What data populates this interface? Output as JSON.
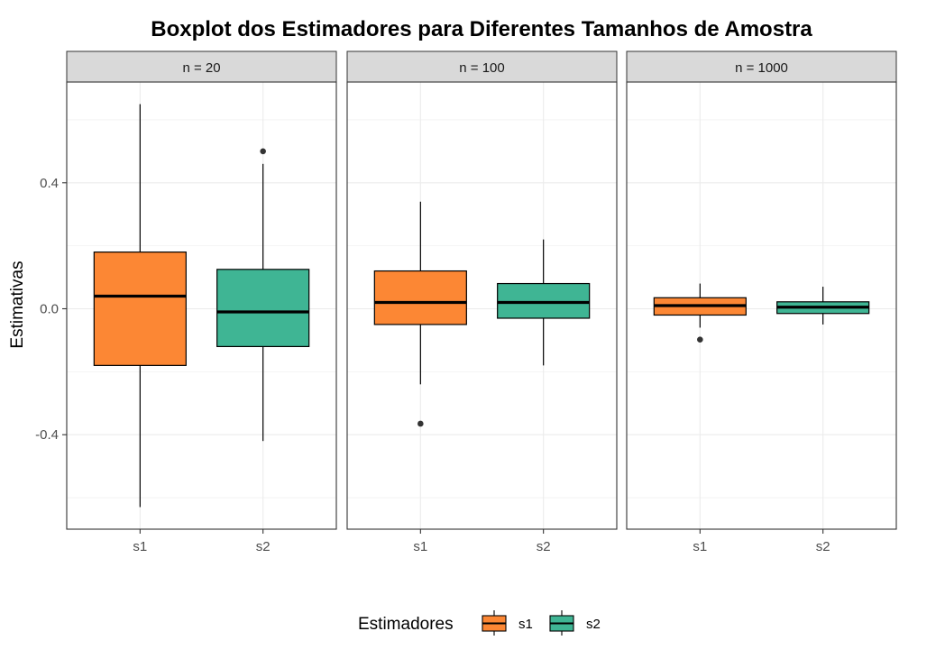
{
  "chart_data": {
    "type": "boxplot",
    "title": "Boxplot dos Estimadores para Diferentes Tamanhos de Amostra",
    "ylabel": "Estimativas",
    "xlabel": "",
    "ylim": [
      -0.7,
      0.72
    ],
    "yticks": [
      -0.4,
      0.0,
      0.4
    ],
    "ytick_labels": [
      "-0.4",
      "0.0",
      "0.4"
    ],
    "grid": true,
    "categories": [
      "s1",
      "s2"
    ],
    "colors": {
      "s1": "#FC8734",
      "s2": "#3FB594"
    },
    "panels": [
      {
        "label": "n = 20",
        "boxes": [
          {
            "category": "s1",
            "whisker_low": -0.63,
            "q1": -0.18,
            "median": 0.04,
            "q3": 0.18,
            "whisker_high": 0.65,
            "outliers": []
          },
          {
            "category": "s2",
            "whisker_low": -0.42,
            "q1": -0.12,
            "median": -0.01,
            "q3": 0.125,
            "whisker_high": 0.46,
            "outliers": [
              0.5
            ]
          }
        ]
      },
      {
        "label": "n = 100",
        "boxes": [
          {
            "category": "s1",
            "whisker_low": -0.24,
            "q1": -0.05,
            "median": 0.02,
            "q3": 0.12,
            "whisker_high": 0.34,
            "outliers": [
              -0.365
            ]
          },
          {
            "category": "s2",
            "whisker_low": -0.18,
            "q1": -0.03,
            "median": 0.02,
            "q3": 0.08,
            "whisker_high": 0.22,
            "outliers": []
          }
        ]
      },
      {
        "label": "n = 1000",
        "boxes": [
          {
            "category": "s1",
            "whisker_low": -0.06,
            "q1": -0.02,
            "median": 0.01,
            "q3": 0.035,
            "whisker_high": 0.08,
            "outliers": [
              -0.098
            ]
          },
          {
            "category": "s2",
            "whisker_low": -0.05,
            "q1": -0.015,
            "median": 0.005,
            "q3": 0.022,
            "whisker_high": 0.07,
            "outliers": []
          }
        ]
      }
    ],
    "legend": {
      "title": "Estimadores",
      "position": "bottom",
      "entries": [
        "s1",
        "s2"
      ]
    }
  }
}
